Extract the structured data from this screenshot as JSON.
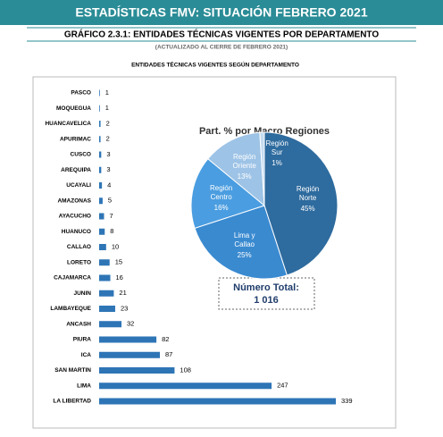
{
  "header": {
    "title": "ESTADÍSTICAS FMV: SITUACIÓN FEBRERO 2021",
    "subtitle": "GRÁFICO 2.3.1: ENTIDADES TÉCNICAS VIGENTES POR DEPARTAMENTO",
    "note": "(ACTUALIZADO AL CIERRE DE FEBRERO 2021)"
  },
  "chart_data": [
    {
      "type": "hbar",
      "title": "ENTIDADES TÉCNICAS VIGENTES SEGÚN DEPARTAMENTO",
      "color": "#2e75b6",
      "categories": [
        "PASCO",
        "MOQUEGUA",
        "HUANCAVELICA",
        "APURIMAC",
        "CUSCO",
        "AREQUIPA",
        "UCAYALI",
        "AMAZONAS",
        "AYACUCHO",
        "HUANUCO",
        "CALLAO",
        "LORETO",
        "CAJAMARCA",
        "JUNIN",
        "LAMBAYEQUE",
        "ANCASH",
        "PIURA",
        "ICA",
        "SAN MARTIN",
        "LIMA",
        "LA LIBERTAD"
      ],
      "values": [
        1,
        1,
        2,
        2,
        3,
        3,
        4,
        5,
        7,
        8,
        10,
        15,
        16,
        21,
        23,
        32,
        82,
        87,
        108,
        247,
        339
      ]
    },
    {
      "type": "pie",
      "title": "Part. % por Macro Regiones",
      "categories": [
        "Región Norte",
        "Lima y Callao",
        "Región Centro",
        "Región Oriente",
        "Región Sur"
      ],
      "values": [
        45,
        25,
        16,
        13,
        1
      ],
      "value_labels": [
        "45%",
        "25%",
        "16%",
        "13%",
        "1%"
      ],
      "colors": [
        "#2e6b9e",
        "#3a8ad0",
        "#4a9de0",
        "#9dc3e6",
        "#c5dcf0"
      ]
    }
  ],
  "total": {
    "title": "Número Total:",
    "value": 1016,
    "value_label": "1 016"
  }
}
